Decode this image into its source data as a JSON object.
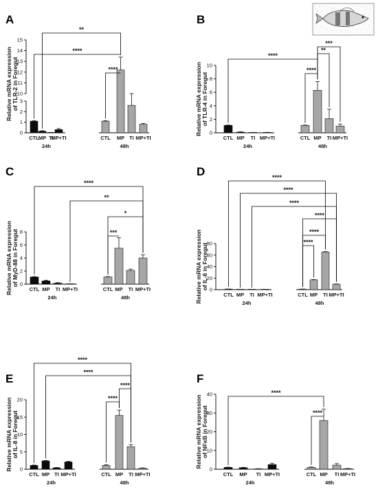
{
  "chart_data": [
    {
      "type": "bar",
      "panel": "A",
      "ylabel": [
        "Relative mRNA expression",
        "of TLR-2 in Foregut"
      ],
      "categories": [
        "CTL",
        "MP",
        "TI",
        "MP+TI",
        "CTL",
        "MP",
        "TI",
        "MP+TI"
      ],
      "groups": [
        "24h",
        "48h"
      ],
      "values": [
        1.1,
        0.15,
        0.02,
        0.3,
        1.1,
        12.2,
        2.6,
        0.8
      ],
      "errors": [
        0.05,
        0.05,
        0.01,
        0.1,
        0.05,
        1.2,
        0.7,
        0.08
      ],
      "y_axis_break": {
        "lower_range": [
          0,
          3
        ],
        "upper_range": [
          10,
          15
        ]
      },
      "ticks_lower": [
        "0",
        "1",
        "2",
        "3"
      ],
      "ticks_upper": [
        "10",
        "11",
        "12",
        "13",
        "14",
        "15"
      ],
      "significance": [
        {
          "from": 5,
          "to": 4,
          "label": "****"
        },
        {
          "from": 5,
          "to": 0,
          "label": "****"
        },
        {
          "from": 5,
          "to": 1,
          "label": "**"
        }
      ]
    },
    {
      "type": "bar",
      "panel": "B",
      "ylabel": [
        "Relative mRNA expression",
        "of TLR-4 in Foregut"
      ],
      "categories": [
        "CTL",
        "MP",
        "TI",
        "MP+TI",
        "CTL",
        "MP",
        "TI",
        "MP+TI"
      ],
      "groups": [
        "24h",
        "48h"
      ],
      "values": [
        1.1,
        0.1,
        0.02,
        0.05,
        1.1,
        6.3,
        2.1,
        1.0
      ],
      "errors": [
        0.05,
        0.05,
        0.01,
        0.02,
        0.05,
        1.3,
        1.4,
        0.3
      ],
      "ylim": [
        0,
        10
      ],
      "ticks": [
        "0",
        "2",
        "4",
        "6",
        "8",
        "10"
      ],
      "significance": [
        {
          "from": 5,
          "to": 4,
          "label": "****"
        },
        {
          "from": 5,
          "to": 0,
          "label": "****"
        },
        {
          "from": 5,
          "to": 6,
          "label": "**"
        },
        {
          "from": 5,
          "to": 7,
          "label": "***"
        }
      ]
    },
    {
      "type": "bar",
      "panel": "C",
      "ylabel": [
        "Relative mRNA expression",
        "of MyD-88 in Foregut"
      ],
      "categories": [
        "CTL",
        "MP",
        "TI",
        "MP+TI",
        "CTL",
        "MP",
        "TI",
        "MP+TI"
      ],
      "groups": [
        "24h",
        "48h"
      ],
      "values": [
        1.1,
        0.5,
        0.15,
        0.02,
        1.1,
        5.5,
        2.1,
        4.0
      ],
      "errors": [
        0.05,
        0.1,
        0.08,
        0.01,
        0.05,
        1.6,
        0.2,
        0.5
      ],
      "ylim": [
        0,
        8
      ],
      "ticks": [
        "0",
        "2",
        "4",
        "6",
        "8"
      ],
      "significance": [
        {
          "from": 5,
          "to": 4,
          "label": "***"
        },
        {
          "from": 7,
          "to": 4,
          "label": "*"
        },
        {
          "from": 7,
          "to": 3,
          "label": "**"
        },
        {
          "from": 7,
          "to": 0,
          "label": "****"
        }
      ]
    },
    {
      "type": "bar",
      "panel": "D",
      "ylabel": [
        "Relative mRNA expression",
        "of IL-6 in Foregut"
      ],
      "categories": [
        "CTL",
        "MP",
        "TI",
        "MP+TI",
        "CTL",
        "MP",
        "TI",
        "MP+TI"
      ],
      "groups": [
        "24h",
        "48h"
      ],
      "values": [
        1.0,
        0.1,
        0.05,
        0.05,
        1.0,
        17,
        65.5,
        9.5
      ],
      "errors": [
        0.05,
        0.05,
        0.02,
        0.02,
        0.05,
        0.5,
        0.6,
        0.5
      ],
      "ylim": [
        0,
        80
      ],
      "ticks": [
        "0",
        "20",
        "40",
        "60",
        "80"
      ],
      "significance": [
        {
          "from": 5,
          "to": 4,
          "label": "****"
        },
        {
          "from": 6,
          "to": 4,
          "label": "****"
        },
        {
          "from": 7,
          "to": 4,
          "label": "****"
        },
        {
          "from": 7,
          "to": 2,
          "label": "****"
        },
        {
          "from": 7,
          "to": 1,
          "label": "****"
        },
        {
          "from": 6,
          "to": 0,
          "label": "****"
        }
      ]
    },
    {
      "type": "bar",
      "panel": "E",
      "ylabel": [
        "Relative mRNA expression",
        "of IL-8 in Foregut"
      ],
      "categories": [
        "CTL",
        "MP",
        "TI",
        "MP+TI",
        "CTL",
        "MP",
        "TI",
        "MP+TI"
      ],
      "groups": [
        "24h",
        "48h"
      ],
      "values": [
        1.1,
        2.4,
        0.4,
        2.1,
        1.1,
        15.5,
        6.5,
        0.3
      ],
      "errors": [
        0.1,
        0.1,
        0.1,
        0.2,
        0.2,
        1.5,
        0.6,
        0.1
      ],
      "ylim": [
        0,
        20
      ],
      "ticks": [
        "0",
        "5",
        "10",
        "15",
        "20"
      ],
      "significance": [
        {
          "from": 5,
          "to": 4,
          "label": "****"
        },
        {
          "from": 6,
          "to": 5,
          "label": "****"
        },
        {
          "from": 6,
          "to": 1,
          "label": "****"
        },
        {
          "from": 6,
          "to": 0,
          "label": "****"
        }
      ]
    },
    {
      "type": "bar",
      "panel": "F",
      "ylabel": [
        "Relative mRNA expression",
        "of NFκB in Foregut"
      ],
      "categories": [
        "CTL",
        "MP",
        "TI",
        "MP+TI",
        "CTL",
        "MP",
        "TI",
        "MP+TI"
      ],
      "groups": [
        "24h",
        "48h"
      ],
      "values": [
        1.0,
        0.8,
        0.2,
        2.5,
        1.0,
        26,
        2.2,
        0.3
      ],
      "errors": [
        0.1,
        0.2,
        0.1,
        0.6,
        0.2,
        6,
        0.8,
        0.1
      ],
      "ylim": [
        0,
        40
      ],
      "ticks": [
        "0",
        "10",
        "20",
        "30",
        "40"
      ],
      "significance": [
        {
          "from": 5,
          "to": 4,
          "label": "****"
        },
        {
          "from": 5,
          "to": 0,
          "label": "****"
        }
      ]
    }
  ],
  "colors": {
    "h24_bar": "#0a0a0a",
    "h48_bar": "#a6a6a6",
    "outline": "#111111"
  },
  "fish_illustration_icon": "fish-sketch-icon"
}
